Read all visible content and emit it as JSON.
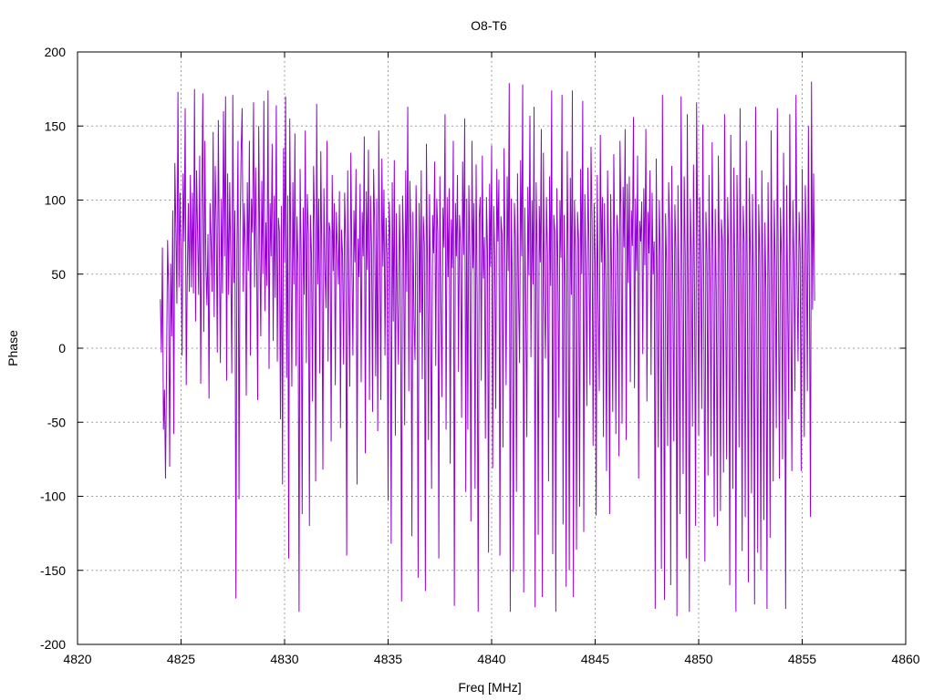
{
  "chart_data": {
    "type": "line",
    "title": "O8-T6",
    "xlabel": "Freq [MHz]",
    "ylabel": "Phase",
    "xlim": [
      4820,
      4860
    ],
    "ylim": [
      -200,
      200
    ],
    "xticks": [
      4820,
      4825,
      4830,
      4835,
      4840,
      4845,
      4850,
      4855,
      4860
    ],
    "yticks": [
      -200,
      -150,
      -100,
      -50,
      0,
      50,
      100,
      150,
      200
    ],
    "grid": true,
    "line_color": "#9400d3",
    "series": [
      {
        "x_start": 4824.0,
        "x_step": 0.05,
        "values": [
          33,
          -3,
          68,
          -55,
          -28,
          -88,
          -12,
          73,
          40,
          -80,
          57,
          8,
          93,
          -58,
          125,
          82,
          30,
          173,
          41,
          105,
          65,
          -5,
          118,
          72,
          162,
          -25,
          48,
          98,
          38,
          117,
          41,
          105,
          37,
          175,
          18,
          120,
          76,
          36,
          130,
          -24,
          91,
          172,
          11,
          140,
          55,
          29,
          77,
          -34,
          98,
          73,
          38,
          146,
          21,
          123,
          84,
          -3,
          154,
          64,
          -10,
          101,
          37,
          160,
          62,
          170,
          -22,
          118,
          36,
          112,
          58,
          -17,
          171,
          44,
          93,
          -169,
          65,
          140,
          -102,
          78,
          132,
          162,
          38,
          98,
          67,
          -32,
          112,
          52,
          140,
          -5,
          101,
          78,
          166,
          41,
          122,
          63,
          -35,
          150,
          69,
          8,
          113,
          50,
          167,
          25,
          85,
          42,
          174,
          -14,
          98,
          62,
          138,
          5,
          103,
          34,
          164,
          -9,
          88,
          79,
          -48,
          96,
          -92,
          135,
          58,
          170,
          -20,
          103,
          -142,
          155,
          66,
          -26,
          112,
          43,
          145,
          -12,
          89,
          56,
          -178,
          121,
          64,
          -112,
          95,
          36,
          147,
          -10,
          104,
          77,
          -120,
          90,
          63,
          -36,
          123,
          82,
          -90,
          165,
          43,
          101,
          -17,
          133,
          58,
          -82,
          108,
          54,
          27,
          140,
          -9,
          85,
          79,
          -63,
          117,
          52,
          98,
          -25,
          92,
          68,
          43,
          106,
          -54,
          80,
          63,
          -11,
          105,
          71,
          -140,
          120,
          40,
          -26,
          132,
          61,
          -5,
          93,
          58,
          121,
          -92,
          74,
          48,
          111,
          -23,
          92,
          62,
          143,
          -71,
          106,
          53,
          134,
          -35,
          103,
          70,
          -43,
          121,
          84,
          -19,
          101,
          -56,
          147,
          64,
          -35,
          128,
          55,
          107,
          -5,
          88,
          63,
          -103,
          99,
          73,
          -132,
          112,
          18,
          127,
          -59,
          91,
          30,
          -11,
          97,
          49,
          -171,
          103,
          66,
          -52,
          120,
          38,
          163,
          -29,
          113,
          80,
          -127,
          92,
          19,
          -8,
          110,
          63,
          -155,
          98,
          24,
          120,
          -21,
          89,
          70,
          -164,
          138,
          56,
          -62,
          104,
          43,
          -95,
          90,
          64,
          126,
          -12,
          101,
          78,
          -142,
          116,
          32,
          -33,
          95,
          68,
          158,
          -55,
          102,
          48,
          108,
          -78,
          87,
          54,
          140,
          -174,
          98,
          62,
          117,
          -16,
          90,
          70,
          -47,
          126,
          63,
          155,
          -97,
          101,
          -55,
          110,
          61,
          -117,
          140,
          54,
          98,
          -95,
          124,
          37,
          -178,
          88,
          102,
          -22,
          130,
          47,
          75,
          -61,
          102,
          66,
          -138,
          111,
          55,
          137,
          -81,
          96,
          62,
          -41,
          121,
          72,
          114,
          -140,
          89,
          77,
          -67,
          135,
          63,
          -25,
          116,
          52,
          179,
          -178,
          101,
          41,
          -151,
          98,
          74,
          -97,
          118,
          36,
          -10,
          127,
          62,
          178,
          -165,
          95,
          26,
          -60,
          109,
          49,
          157,
          -6,
          100,
          43,
          163,
          -175,
          112,
          64,
          -126,
          96,
          58,
          148,
          -168,
          132,
          35,
          -7,
          102,
          64,
          -90,
          116,
          42,
          174,
          -139,
          90,
          79,
          -178,
          108,
          56,
          -47,
          100,
          61,
          171,
          -119,
          90,
          42,
          -161,
          133,
          58,
          -150,
          115,
          36,
          174,
          -168,
          100,
          64,
          -136,
          92,
          73,
          -107,
          121,
          50,
          167,
          -124,
          104,
          58,
          -39,
          122,
          72,
          -25,
          136,
          86,
          -66,
          98,
          57,
          -113,
          117,
          34,
          -29,
          144,
          58,
          102,
          -60,
          98,
          43,
          -83,
          120,
          63,
          -112,
          104,
          46,
          -43,
          131,
          64,
          -58,
          90,
          75,
          -73,
          140,
          87,
          -51,
          109,
          68,
          148,
          -62,
          111,
          44,
          116,
          -23,
          93,
          69,
          156,
          -27,
          101,
          52,
          130,
          -88,
          86,
          72,
          99,
          -4,
          108,
          56,
          148,
          -36,
          92,
          64,
          120,
          -18,
          105,
          50,
          72,
          -176,
          128,
          41,
          -67,
          100,
          61,
          -149,
          171,
          33,
          -170,
          91,
          56,
          -66,
          112,
          84,
          -160,
          123,
          47,
          -63,
          97,
          66,
          -181,
          110,
          25,
          -112,
          170,
          48,
          -85,
          116,
          63,
          -142,
          158,
          21,
          -178,
          101,
          62,
          -53,
          124,
          39,
          -120,
          166,
          70,
          -59,
          102,
          56,
          -41,
          151,
          33,
          -144,
          92,
          64,
          -86,
          117,
          45,
          -73,
          139,
          58,
          -114,
          94,
          37,
          -120,
          130,
          62,
          -110,
          87,
          72,
          -84,
          158,
          40,
          -75,
          102,
          59,
          -160,
          144,
          50,
          -95,
          122,
          37,
          -178,
          117,
          62,
          -67,
          162,
          28,
          -137,
          96,
          70,
          -114,
          140,
          44,
          -158,
          115,
          58,
          -98,
          104,
          42,
          -173,
          163,
          36,
          -138,
          97,
          61,
          -150,
          120,
          53,
          -116,
          85,
          37,
          -176,
          112,
          48,
          -128,
          147,
          31,
          -90,
          100,
          55,
          -54,
          162,
          43,
          -88,
          95,
          61,
          -75,
          132,
          47,
          -176,
          110,
          33,
          -48,
          158,
          40,
          -83,
          100,
          59,
          -29,
          171,
          48,
          -9,
          92,
          66,
          -83,
          121,
          33,
          -60,
          110,
          72,
          -29,
          150,
          37,
          -114,
          180,
          26,
          118,
          32
        ]
      }
    ]
  }
}
